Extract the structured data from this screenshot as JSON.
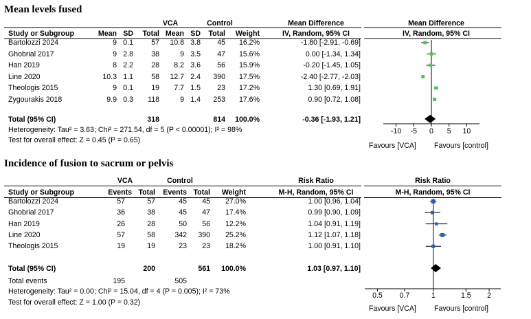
{
  "chart_data": [
    {
      "type": "forest",
      "title": "Mean levels fused",
      "group_labels": [
        "VCA",
        "Control"
      ],
      "headers": [
        "Study or Subgroup",
        "Mean",
        "SD",
        "Total",
        "Mean",
        "SD",
        "Total",
        "Weight",
        "IV, Random, 95% CI"
      ],
      "effect_title": "Mean Difference",
      "effect_method": "IV, Random, 95% CI",
      "rows": [
        {
          "study": "Bartolozzi 2024",
          "cols": [
            "9",
            "0.1",
            "57",
            "10.8",
            "3.8",
            "45",
            "16.2%"
          ],
          "ci_text": "-1.80 [-2.91, -0.69]",
          "est": -1.8,
          "lo": -2.91,
          "hi": -0.69
        },
        {
          "study": "Ghobrial 2017",
          "cols": [
            "9",
            "2.8",
            "38",
            "9",
            "3.5",
            "47",
            "15.6%"
          ],
          "ci_text": "0.00 [-1.34, 1.34]",
          "est": 0.0,
          "lo": -1.34,
          "hi": 1.34
        },
        {
          "study": "Han 2019",
          "cols": [
            "8",
            "2.2",
            "28",
            "8.2",
            "3.6",
            "56",
            "15.9%"
          ],
          "ci_text": "-0.20 [-1.45, 1.05]",
          "est": -0.2,
          "lo": -1.45,
          "hi": 1.05
        },
        {
          "study": "Line 2020",
          "cols": [
            "10.3",
            "1.1",
            "58",
            "12.7",
            "2.4",
            "390",
            "17.5%"
          ],
          "ci_text": "-2.40 [-2.77, -2.03]",
          "est": -2.4,
          "lo": -2.77,
          "hi": -2.03
        },
        {
          "study": "Theologis 2015",
          "cols": [
            "9",
            "0.1",
            "19",
            "7.7",
            "1.5",
            "23",
            "17.2%"
          ],
          "ci_text": "1.30 [0.69, 1.91]",
          "est": 1.3,
          "lo": 0.69,
          "hi": 1.91
        },
        {
          "study": "Zygourakis 2018",
          "cols": [
            "9.9",
            "0.3",
            "118",
            "9",
            "1.4",
            "253",
            "17.6%"
          ],
          "ci_text": "0.90 [0.72, 1.08]",
          "est": 0.9,
          "lo": 0.72,
          "hi": 1.08
        }
      ],
      "total": {
        "label": "Total (95% CI)",
        "vca_total": "318",
        "control_total": "814",
        "weight": "100.0%",
        "ci_text": "-0.36 [-1.93, 1.21]",
        "est": -0.36,
        "lo": -1.93,
        "hi": 1.21
      },
      "footer": [
        "Heterogeneity: Tau² = 3.63; Chi² = 271.54, df = 5 (P < 0.00001); I² = 98%",
        "Test for overall effect: Z = 0.45 (P = 0.65)"
      ],
      "axis": {
        "scale": "linear",
        "xlim": [
          -14,
          14
        ],
        "null": 0,
        "ticks": [
          -10,
          -5,
          0,
          5,
          10
        ],
        "tick_labels": [
          "-10",
          "-5",
          "0",
          "5",
          "10"
        ]
      },
      "favours_left": "Favours [VCA]",
      "favours_right": "Favours [control]",
      "marker_color": "#4ec94a"
    },
    {
      "type": "forest",
      "title": "Incidence of fusion to sacrum or pelvis",
      "group_labels": [
        "VCA",
        "Control"
      ],
      "headers": [
        "Study or Subgroup",
        "Events",
        "Total",
        "Events",
        "Total",
        "Weight",
        "M-H, Random, 95% CI"
      ],
      "effect_title": "Risk Ratio",
      "effect_method": "M-H, Random, 95% CI",
      "rows": [
        {
          "study": "Bartolozzi 2024",
          "cols": [
            "57",
            "57",
            "45",
            "45",
            "27.0%"
          ],
          "ci_text": "1.00 [0.96, 1.04]",
          "est": 1.0,
          "lo": 0.96,
          "hi": 1.04
        },
        {
          "study": "Ghobrial 2017",
          "cols": [
            "36",
            "38",
            "45",
            "47",
            "17.4%"
          ],
          "ci_text": "0.99 [0.90, 1.09]",
          "est": 0.99,
          "lo": 0.9,
          "hi": 1.09
        },
        {
          "study": "Han 2019",
          "cols": [
            "26",
            "28",
            "50",
            "56",
            "12.2%"
          ],
          "ci_text": "1.04 [0.91, 1.19]",
          "est": 1.04,
          "lo": 0.91,
          "hi": 1.19
        },
        {
          "study": "Line 2020",
          "cols": [
            "57",
            "58",
            "342",
            "390",
            "25.2%"
          ],
          "ci_text": "1.12 [1.07, 1.18]",
          "est": 1.12,
          "lo": 1.07,
          "hi": 1.18
        },
        {
          "study": "Theologis 2015",
          "cols": [
            "19",
            "19",
            "23",
            "23",
            "18.2%"
          ],
          "ci_text": "1.00 [0.91, 1.10]",
          "est": 1.0,
          "lo": 0.91,
          "hi": 1.1
        }
      ],
      "total": {
        "label": "Total (95% CI)",
        "vca_total": "200",
        "control_total": "561",
        "weight": "100.0%",
        "ci_text": "1.03 [0.97, 1.10]",
        "est": 1.03,
        "lo": 0.97,
        "hi": 1.1
      },
      "total_events": {
        "label": "Total events",
        "vca": "195",
        "control": "505"
      },
      "footer": [
        "Heterogeneity: Tau² = 0.00; Chi² = 15.04, df = 4 (P = 0.005); I² = 73%",
        "Test for overall effect: Z = 1.00 (P = 0.32)"
      ],
      "axis": {
        "scale": "log",
        "xlim": [
          0.42,
          2.35
        ],
        "null": 1,
        "ticks": [
          0.5,
          0.7,
          1,
          1.5,
          2
        ],
        "tick_labels": [
          "0.5",
          "0.7",
          "1",
          "1.5",
          "2"
        ]
      },
      "favours_left": "Favours [VCA]",
      "favours_right": "Favours [control]",
      "marker_color": "#2f5fb3"
    }
  ]
}
